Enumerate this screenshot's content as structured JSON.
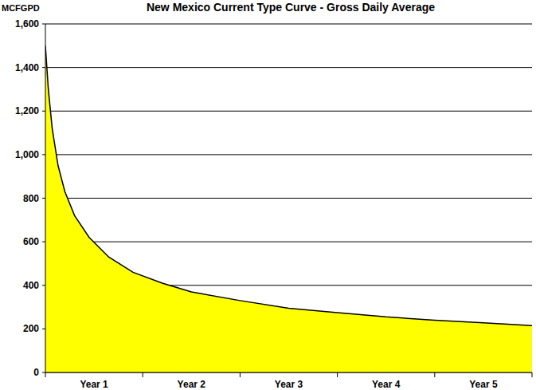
{
  "chart_data": {
    "type": "area",
    "title": "New Mexico Current Type Curve - Gross Daily Average",
    "y_label": "MCFGPD",
    "x": [
      0,
      0.03,
      0.07,
      0.13,
      0.2,
      0.3,
      0.45,
      0.65,
      0.9,
      1.2,
      1.5,
      2.0,
      2.5,
      3.0,
      3.5,
      4.0,
      4.5,
      5.0
    ],
    "values": [
      1500,
      1300,
      1120,
      950,
      830,
      720,
      620,
      530,
      460,
      410,
      370,
      330,
      295,
      275,
      255,
      240,
      228,
      215
    ],
    "color": "#ffff00",
    "xlim": [
      0,
      5
    ],
    "xticks": [
      {
        "value": 0.5,
        "label": "Year 1"
      },
      {
        "value": 1.5,
        "label": "Year 2"
      },
      {
        "value": 2.5,
        "label": "Year 3"
      },
      {
        "value": 3.5,
        "label": "Year 4"
      },
      {
        "value": 4.5,
        "label": "Year 5"
      }
    ],
    "ylim": [
      0,
      1600
    ],
    "yticks": [
      0,
      200,
      400,
      600,
      800,
      {
        "value": 1000,
        "label": "1,000"
      },
      {
        "value": 1200,
        "label": "1,200"
      },
      {
        "value": 1400,
        "label": "1,400"
      },
      {
        "value": 1600,
        "label": "1,600"
      }
    ],
    "grid": true
  }
}
